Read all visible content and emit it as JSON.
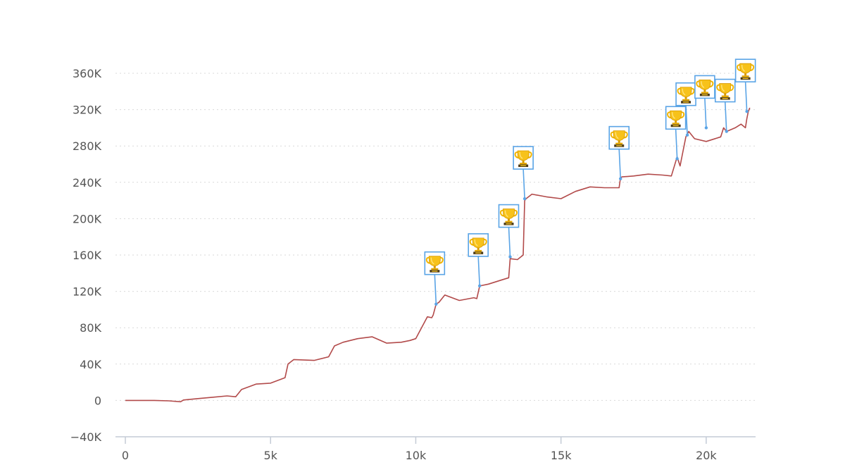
{
  "chart_data": {
    "type": "line",
    "title": "",
    "xlabel": "",
    "ylabel": "",
    "xlim": [
      0,
      21700
    ],
    "ylim": [
      -40000,
      360000
    ],
    "grid": true,
    "x_ticks": [
      {
        "value": 0,
        "label": "0"
      },
      {
        "value": 5000,
        "label": "5k"
      },
      {
        "value": 10000,
        "label": "10k"
      },
      {
        "value": 15000,
        "label": "15k"
      },
      {
        "value": 20000,
        "label": "20k"
      }
    ],
    "y_ticks": [
      {
        "value": -40000,
        "label": "−40K"
      },
      {
        "value": 0,
        "label": "0"
      },
      {
        "value": 40000,
        "label": "40K"
      },
      {
        "value": 80000,
        "label": "80K"
      },
      {
        "value": 120000,
        "label": "120K"
      },
      {
        "value": 160000,
        "label": "160K"
      },
      {
        "value": 200000,
        "label": "200K"
      },
      {
        "value": 240000,
        "label": "240K"
      },
      {
        "value": 280000,
        "label": "280K"
      },
      {
        "value": 320000,
        "label": "320K"
      },
      {
        "value": 360000,
        "label": "360K"
      }
    ],
    "line_color": "#b24a4a",
    "marker_color": "#5aa4e6",
    "series": [
      {
        "x": [
          0,
          500,
          1000,
          1500,
          1900,
          2000,
          2500,
          3000,
          3500,
          3800,
          4000,
          4500,
          5000,
          5500,
          5600,
          5800,
          6500,
          7000,
          7200,
          7500,
          8000,
          8500,
          9000,
          9500,
          9800,
          10000,
          10400,
          10550,
          10600,
          10700,
          10800,
          11000,
          11500,
          12000,
          12100,
          12200,
          12500,
          13000,
          13200,
          13250,
          13500,
          13700,
          13750,
          13800,
          14000,
          14500,
          15000,
          15500,
          16000,
          16500,
          17000,
          17050,
          17100,
          17500,
          18000,
          18500,
          18800,
          19000,
          19100,
          19200,
          19300,
          19400,
          19600,
          20000,
          20500,
          20600,
          20700,
          21000,
          21200,
          21350,
          21400,
          21450,
          21500
        ],
        "y": [
          0,
          0,
          0,
          -500,
          -1500,
          500,
          2000,
          3500,
          5000,
          4000,
          12000,
          18000,
          19000,
          25000,
          40000,
          45000,
          44000,
          48000,
          60000,
          64000,
          68000,
          70000,
          63000,
          64000,
          66000,
          68000,
          92000,
          91000,
          94000,
          106000,
          108000,
          116000,
          110000,
          113000,
          112000,
          126000,
          128000,
          133000,
          135000,
          156000,
          155000,
          160000,
          220000,
          222000,
          227000,
          224000,
          222000,
          230000,
          235000,
          234000,
          234000,
          245000,
          246000,
          247000,
          249000,
          248000,
          247000,
          268000,
          258000,
          274000,
          290000,
          296000,
          288000,
          285000,
          290000,
          300000,
          296000,
          300000,
          304000,
          300000,
          310000,
          318000,
          322000
        ]
      }
    ],
    "annotations": [
      {
        "x": 10700,
        "y": 106000,
        "icon": "trophy"
      },
      {
        "x": 12200,
        "y": 126000,
        "icon": "trophy"
      },
      {
        "x": 13250,
        "y": 158000,
        "icon": "trophy"
      },
      {
        "x": 13750,
        "y": 222000,
        "icon": "trophy"
      },
      {
        "x": 17050,
        "y": 244000,
        "icon": "trophy"
      },
      {
        "x": 19000,
        "y": 266000,
        "icon": "trophy"
      },
      {
        "x": 19350,
        "y": 292000,
        "icon": "trophy"
      },
      {
        "x": 20000,
        "y": 300000,
        "icon": "trophy"
      },
      {
        "x": 20700,
        "y": 296000,
        "icon": "trophy"
      },
      {
        "x": 21400,
        "y": 318000,
        "icon": "trophy"
      }
    ]
  }
}
